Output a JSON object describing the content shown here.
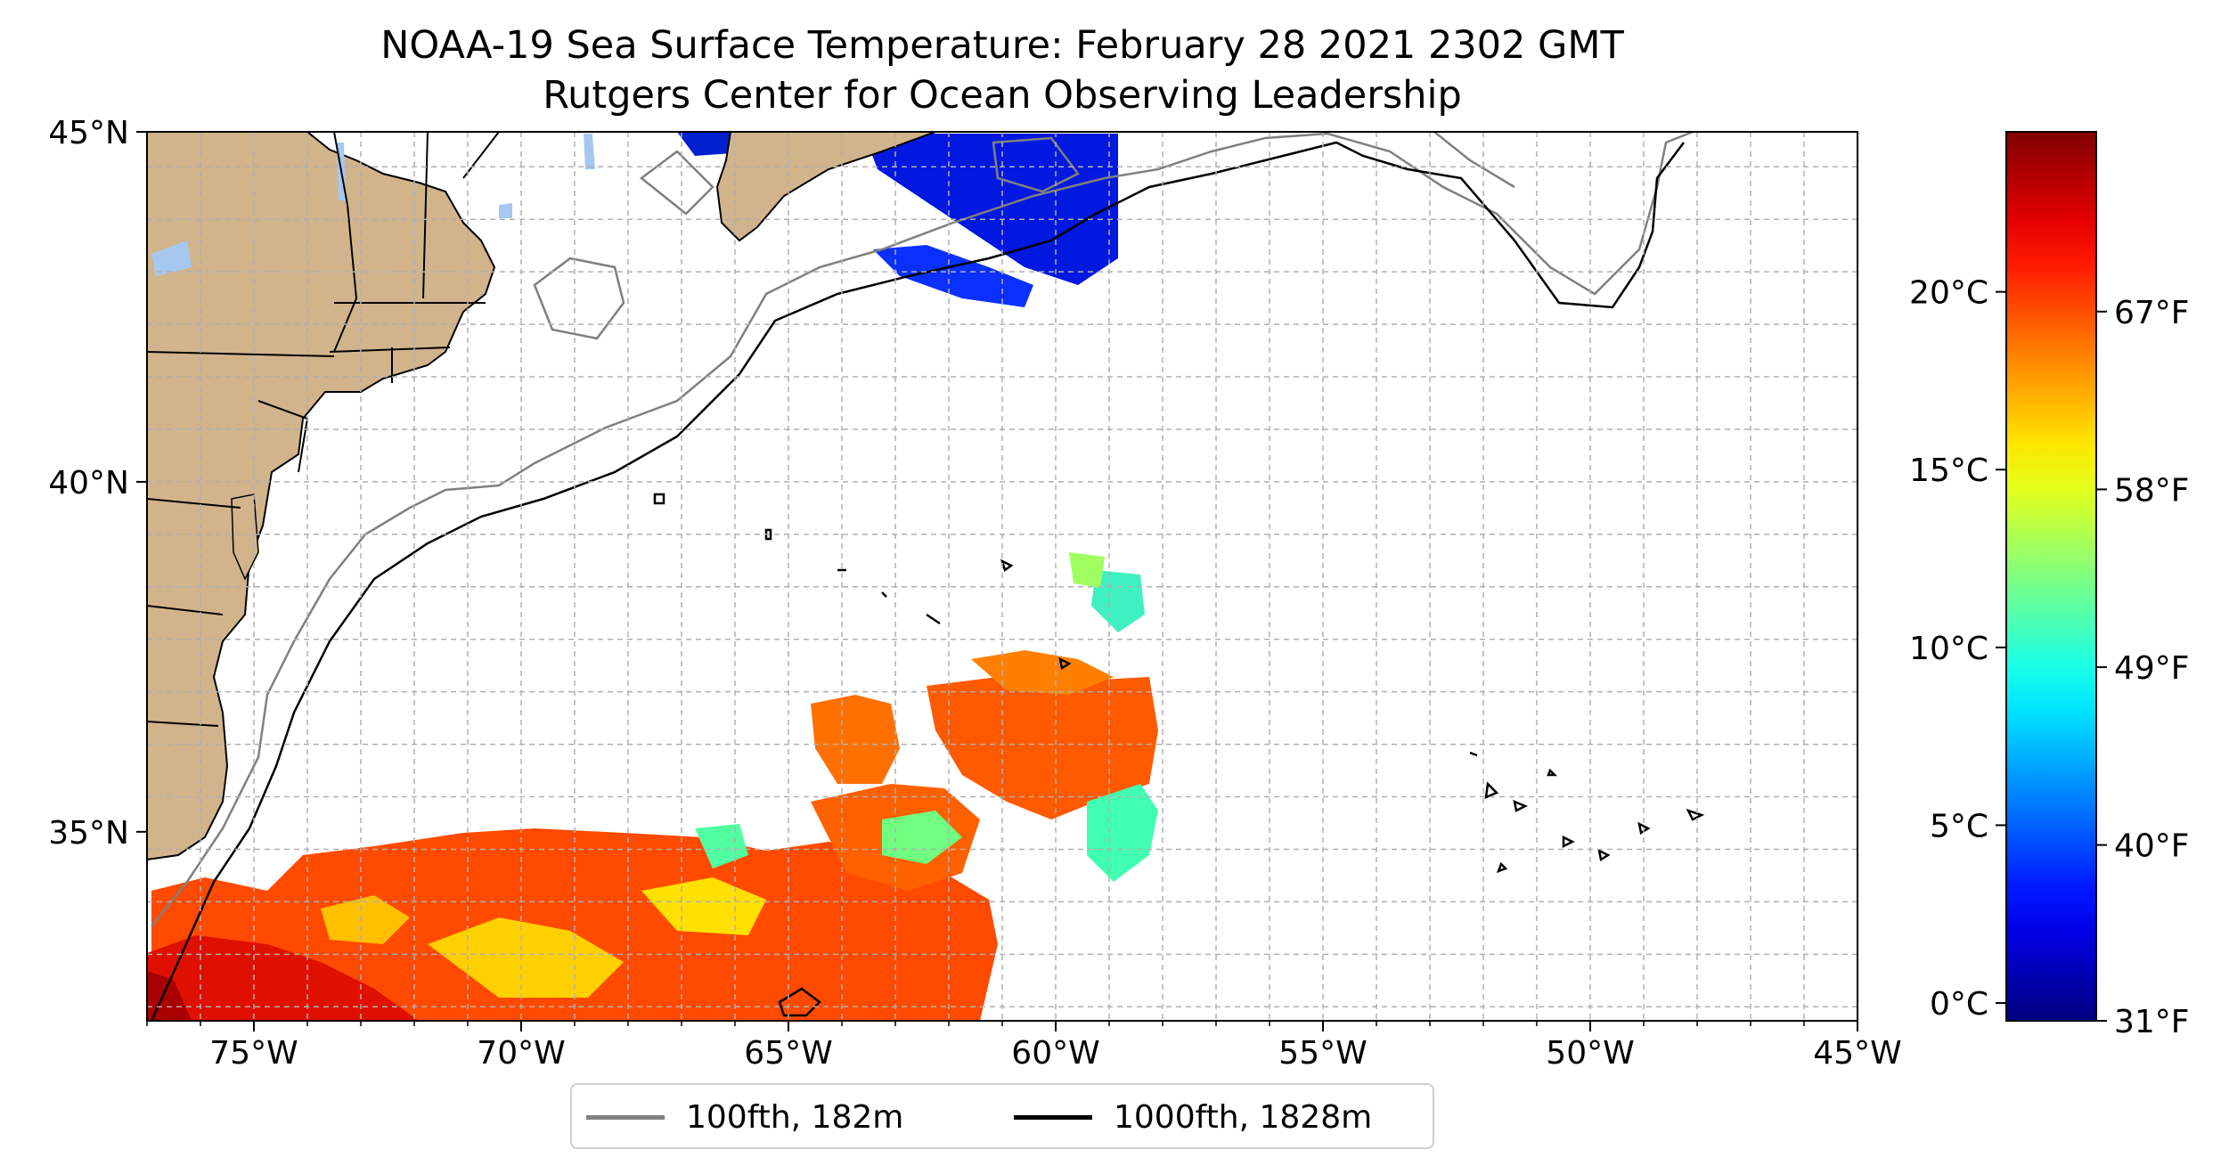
{
  "title": "NOAA-19 Sea Surface Temperature: February 28 2021 2302 GMT",
  "subtitle": "Rutgers Center for Ocean Observing Leadership",
  "map": {
    "lon_range": [
      -77,
      -45
    ],
    "lat_range": [
      32.3,
      45
    ],
    "lon_ticks": [
      {
        "value": -75,
        "label": "75°W"
      },
      {
        "value": -70,
        "label": "70°W"
      },
      {
        "value": -65,
        "label": "65°W"
      },
      {
        "value": -60,
        "label": "60°W"
      },
      {
        "value": -55,
        "label": "55°W"
      },
      {
        "value": -50,
        "label": "50°W"
      },
      {
        "value": -45,
        "label": "45°W"
      }
    ],
    "lat_ticks": [
      {
        "value": 45,
        "label": "45°N"
      },
      {
        "value": 40,
        "label": "40°N"
      },
      {
        "value": 35,
        "label": "35°N"
      }
    ],
    "grid": true,
    "land_color": "#d2b48c",
    "lake_color": "#a6c8f0",
    "colors": {
      "isobath_100": "#808080",
      "isobath_1000": "#000000"
    }
  },
  "legend": {
    "placement": "bottom-center",
    "entries": [
      {
        "label": "100fth, 182m",
        "color": "#808080"
      },
      {
        "label": "1000fth, 1828m",
        "color": "#000000"
      }
    ]
  },
  "colorbar": {
    "colormap": "jet",
    "range_c": [
      -0.5,
      24.5
    ],
    "celsius_ticks": [
      {
        "value": 0,
        "label": "0°C"
      },
      {
        "value": 5,
        "label": "5°C"
      },
      {
        "value": 10,
        "label": "10°C"
      },
      {
        "value": 15,
        "label": "15°C"
      },
      {
        "value": 20,
        "label": "20°C"
      }
    ],
    "fahrenheit_ticks": [
      {
        "value": 31,
        "label": "31°F"
      },
      {
        "value": 40,
        "label": "40°F"
      },
      {
        "value": 49,
        "label": "49°F"
      },
      {
        "value": 58,
        "label": "58°F"
      },
      {
        "value": 67,
        "label": "67°F"
      }
    ]
  }
}
